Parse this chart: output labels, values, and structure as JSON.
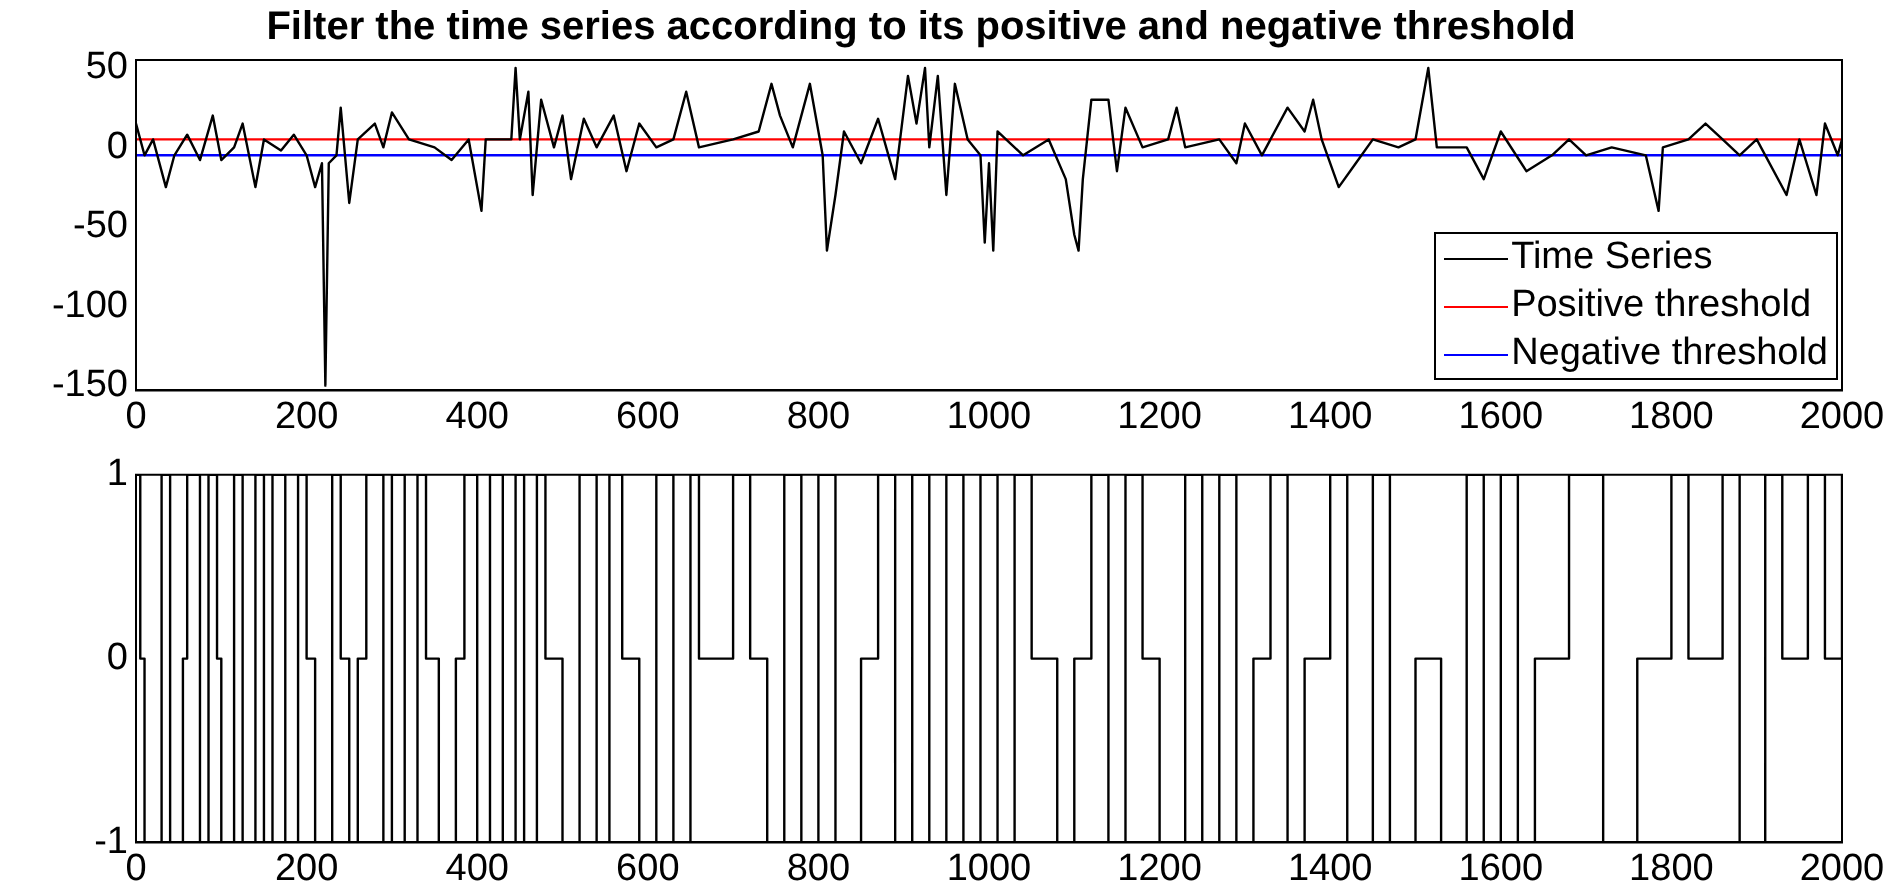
{
  "chart_data": [
    {
      "type": "line",
      "title": "Filter the time series according to its positive and negative threshold",
      "xlim": [
        0,
        2000
      ],
      "xticks": [
        0,
        200,
        400,
        600,
        800,
        1000,
        1200,
        1400,
        1600,
        1800,
        2000
      ],
      "ylim": [
        -153,
        55
      ],
      "yticks": [
        -150,
        -100,
        -50,
        0,
        50
      ],
      "grid": false,
      "legend": "bottom right",
      "series": [
        {
          "name": "Time Series",
          "color": "#000000",
          "x": [
            0,
            10,
            20,
            35,
            45,
            60,
            75,
            90,
            100,
            115,
            125,
            140,
            150,
            170,
            185,
            200,
            210,
            218,
            222,
            226,
            235,
            240,
            250,
            260,
            280,
            290,
            300,
            320,
            350,
            370,
            390,
            405,
            410,
            440,
            445,
            450,
            460,
            465,
            475,
            490,
            500,
            510,
            525,
            540,
            560,
            575,
            590,
            610,
            630,
            645,
            660,
            700,
            730,
            745,
            755,
            770,
            790,
            805,
            810,
            820,
            830,
            850,
            870,
            890,
            905,
            915,
            925,
            930,
            940,
            950,
            960,
            975,
            990,
            995,
            1000,
            1005,
            1010,
            1040,
            1070,
            1090,
            1100,
            1105,
            1110,
            1120,
            1140,
            1150,
            1160,
            1180,
            1210,
            1220,
            1230,
            1270,
            1290,
            1300,
            1320,
            1350,
            1370,
            1380,
            1390,
            1410,
            1430,
            1450,
            1480,
            1500,
            1515,
            1525,
            1560,
            1580,
            1600,
            1630,
            1660,
            1680,
            1700,
            1730,
            1770,
            1785,
            1790,
            1820,
            1840,
            1860,
            1880,
            1900,
            1935,
            1950,
            1970,
            1980,
            1995,
            2000
          ],
          "values": [
            15,
            -5,
            5,
            -25,
            -5,
            8,
            -8,
            20,
            -8,
            0,
            15,
            -25,
            5,
            -2,
            8,
            -5,
            -25,
            -10,
            -150,
            -10,
            -5,
            25,
            -35,
            5,
            15,
            0,
            22,
            5,
            0,
            -8,
            5,
            -40,
            5,
            5,
            50,
            5,
            35,
            -30,
            30,
            0,
            20,
            -20,
            18,
            0,
            20,
            -15,
            15,
            0,
            5,
            35,
            0,
            5,
            10,
            40,
            20,
            0,
            40,
            -5,
            -65,
            -30,
            10,
            -10,
            18,
            -20,
            45,
            15,
            50,
            0,
            45,
            -30,
            40,
            5,
            -5,
            -60,
            -10,
            -65,
            10,
            -5,
            5,
            -20,
            -55,
            -65,
            -20,
            30,
            30,
            -15,
            25,
            0,
            5,
            25,
            0,
            5,
            -10,
            15,
            -5,
            25,
            10,
            30,
            5,
            -25,
            -10,
            5,
            0,
            5,
            50,
            0,
            0,
            -20,
            10,
            -15,
            -5,
            5,
            -5,
            0,
            -5,
            -40,
            0,
            5,
            15,
            5,
            -5,
            5,
            -30,
            5,
            -30,
            15,
            -5,
            5
          ]
        },
        {
          "name": "Positive threshold",
          "color": "#ff0000",
          "x": [
            0,
            2000
          ],
          "values": [
            5,
            5
          ]
        },
        {
          "name": "Negative threshold",
          "color": "#0000ff",
          "x": [
            0,
            2000
          ],
          "values": [
            -5,
            -5
          ]
        }
      ]
    },
    {
      "type": "step",
      "xlim": [
        0,
        2000
      ],
      "xticks": [
        0,
        200,
        400,
        600,
        800,
        1000,
        1200,
        1400,
        1600,
        1800,
        2000
      ],
      "ylim": [
        -1,
        1
      ],
      "yticks": [
        -1,
        0,
        1
      ],
      "grid": false,
      "series": [
        {
          "color": "#000000",
          "x": [
            0,
            5,
            10,
            30,
            40,
            55,
            60,
            75,
            85,
            95,
            100,
            115,
            125,
            140,
            150,
            160,
            175,
            190,
            200,
            210,
            230,
            240,
            250,
            260,
            270,
            290,
            300,
            315,
            330,
            340,
            355,
            375,
            385,
            400,
            415,
            430,
            445,
            455,
            470,
            480,
            500,
            520,
            540,
            555,
            570,
            590,
            610,
            630,
            650,
            660,
            700,
            720,
            740,
            760,
            780,
            800,
            820,
            850,
            870,
            890,
            910,
            930,
            950,
            970,
            990,
            1010,
            1030,
            1050,
            1080,
            1100,
            1120,
            1140,
            1160,
            1180,
            1200,
            1230,
            1250,
            1270,
            1290,
            1310,
            1330,
            1350,
            1370,
            1400,
            1420,
            1450,
            1470,
            1500,
            1530,
            1560,
            1580,
            1600,
            1620,
            1640,
            1680,
            1720,
            1760,
            1800,
            1820,
            1860,
            1880,
            1910,
            1930,
            1960,
            1980,
            2000
          ],
          "values": [
            1,
            0,
            -1,
            1,
            -1,
            0,
            1,
            -1,
            1,
            0,
            -1,
            1,
            -1,
            1,
            -1,
            1,
            -1,
            1,
            0,
            -1,
            1,
            0,
            -1,
            0,
            1,
            -1,
            1,
            -1,
            1,
            0,
            -1,
            0,
            1,
            -1,
            1,
            -1,
            1,
            -1,
            1,
            0,
            -1,
            1,
            -1,
            1,
            0,
            -1,
            1,
            -1,
            1,
            0,
            1,
            0,
            -1,
            1,
            -1,
            1,
            -1,
            0,
            1,
            -1,
            1,
            -1,
            1,
            -1,
            1,
            -1,
            1,
            0,
            -1,
            0,
            1,
            -1,
            1,
            0,
            -1,
            1,
            -1,
            1,
            -1,
            0,
            1,
            -1,
            0,
            1,
            -1,
            1,
            -1,
            0,
            -1,
            1,
            -1,
            1,
            -1,
            0,
            1,
            -1,
            0,
            1,
            0,
            1,
            -1,
            1,
            0,
            1,
            0,
            1
          ]
        }
      ]
    }
  ]
}
